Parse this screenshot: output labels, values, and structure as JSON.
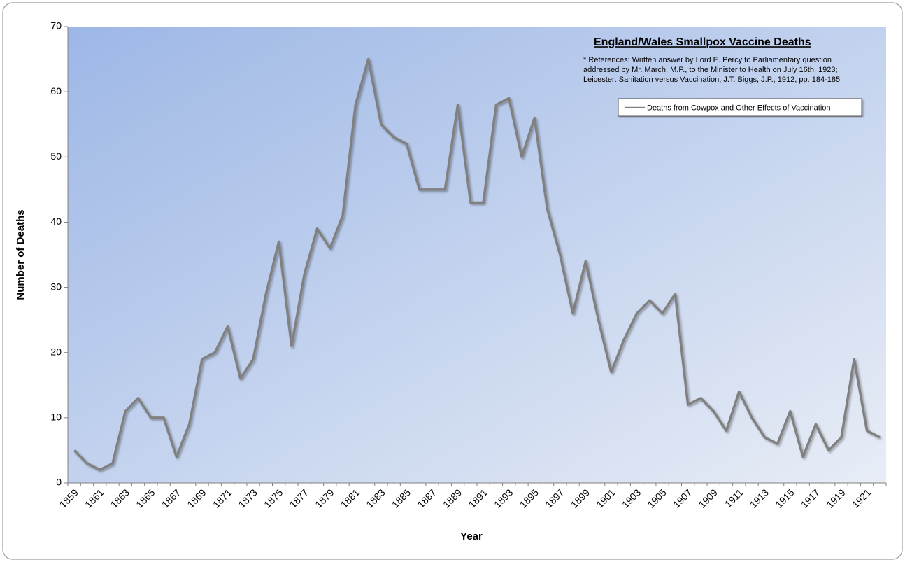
{
  "chart_data": {
    "type": "line",
    "title": "England/Wales Smallpox Vaccine Deaths",
    "annotation": [
      "* References: Written answer by Lord E. Percy to Parliamentary question",
      "addressed by Mr. March, M.P., to the Minister to Health on July 16th, 1923;",
      "Leicester: Sanitation versus Vaccination, J.T. Biggs, J.P., 1912, pp. 184-185"
    ],
    "x_label": "Year",
    "y_label": "Number of Deaths",
    "categories": [
      "1859",
      null,
      "1861",
      null,
      "1863",
      null,
      "1865",
      null,
      "1867",
      null,
      "1869",
      null,
      "1871",
      null,
      "1873",
      null,
      "1875",
      null,
      "1877",
      null,
      "1879",
      null,
      "1881",
      null,
      "1883",
      null,
      "1885",
      null,
      "1887",
      null,
      "1889",
      null,
      "1891",
      null,
      "1893",
      null,
      "1895",
      null,
      "1897",
      null,
      "1899",
      null,
      "1901",
      null,
      "1903",
      null,
      "1905",
      null,
      "1907",
      null,
      "1909",
      null,
      "1911",
      null,
      "1913",
      null,
      "1915",
      null,
      "1917",
      null,
      "1919",
      null,
      "1921",
      null
    ],
    "series": [
      {
        "name": "Deaths from Cowpox and Other Effects of Vaccination",
        "color": "#808080",
        "values": [
          5,
          3,
          2,
          3,
          11,
          13,
          10,
          10,
          4,
          9,
          19,
          20,
          24,
          16,
          19,
          29,
          37,
          21,
          32,
          39,
          36,
          41,
          58,
          65,
          55,
          53,
          52,
          45,
          45,
          45,
          58,
          43,
          43,
          58,
          59,
          50,
          56,
          42,
          35,
          26,
          34,
          25,
          17,
          22,
          26,
          28,
          26,
          29,
          12,
          13,
          11,
          8,
          14,
          10,
          7,
          6,
          11,
          4,
          9,
          5,
          7,
          19,
          8,
          7
        ]
      }
    ],
    "ylim": [
      0,
      70
    ],
    "yticks": [
      0,
      10,
      20,
      30,
      40,
      50,
      60,
      70
    ],
    "legend": "upper right"
  }
}
